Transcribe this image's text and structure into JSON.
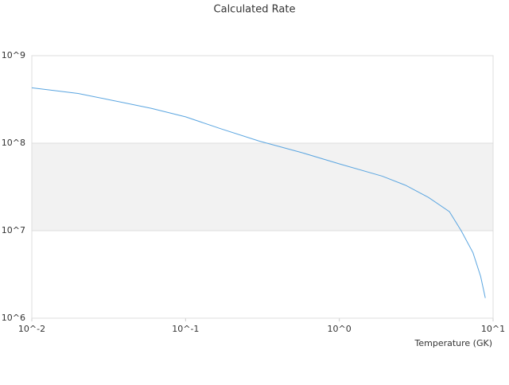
{
  "chart_data": {
    "type": "line",
    "title": "Calculated Rate",
    "x_label": "Temperature (GK)",
    "x": [
      0.01,
      0.02,
      0.033,
      0.06,
      0.1,
      0.17,
      0.3,
      0.57,
      1,
      1.9,
      2.7,
      3.8,
      5.2,
      6.2,
      7.4,
      8.3,
      8.9
    ],
    "series": [
      {
        "name": "Calculated Rate",
        "color": "#5aa5e0",
        "values": [
          430000000,
          370000000,
          310000000,
          250000000,
          200000000,
          146000000,
          106000000,
          78000000,
          58000000,
          42000000,
          33000000,
          24000000,
          16500000,
          10000000,
          5600000,
          3000000,
          1700000
        ]
      }
    ],
    "xlim": [
      0.01,
      10
    ],
    "ylim": [
      1000000,
      1000000000
    ],
    "xticks": [
      {
        "value": 0.01,
        "label": "10^-2"
      },
      {
        "value": 0.1,
        "label": "10^-1"
      },
      {
        "value": 1,
        "label": "10^0"
      },
      {
        "value": 10,
        "label": "10^1"
      }
    ],
    "yticks": [
      {
        "value": 1000000,
        "label": "10^6"
      },
      {
        "value": 10000000,
        "label": "10^7"
      },
      {
        "value": 100000000,
        "label": "10^8"
      },
      {
        "value": 1000000000,
        "label": "10^9"
      }
    ],
    "xlog": true,
    "ylog": true,
    "band_color": "#f2f2f2"
  }
}
